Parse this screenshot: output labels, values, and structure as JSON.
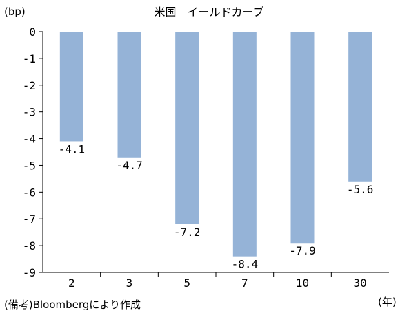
{
  "chart_data": {
    "type": "bar",
    "title": "米国　イールドカーブ",
    "ylabel": "(bp)",
    "xlabel": "(年)",
    "source": "(備考)Bloombergにより作成",
    "categories": [
      "2",
      "3",
      "5",
      "7",
      "10",
      "30"
    ],
    "values": [
      -4.1,
      -4.7,
      -7.2,
      -8.4,
      -7.9,
      -5.6
    ],
    "data_labels": [
      "-4.1",
      "-4.7",
      "-7.2",
      "-8.4",
      "-7.9",
      "-5.6"
    ],
    "ylim": [
      -9,
      0
    ],
    "yticks": [
      "0",
      "-1",
      "-2",
      "-3",
      "-4",
      "-5",
      "-6",
      "-7",
      "-8",
      "-9"
    ],
    "grid": false,
    "bar_color": "#95b3d7"
  }
}
